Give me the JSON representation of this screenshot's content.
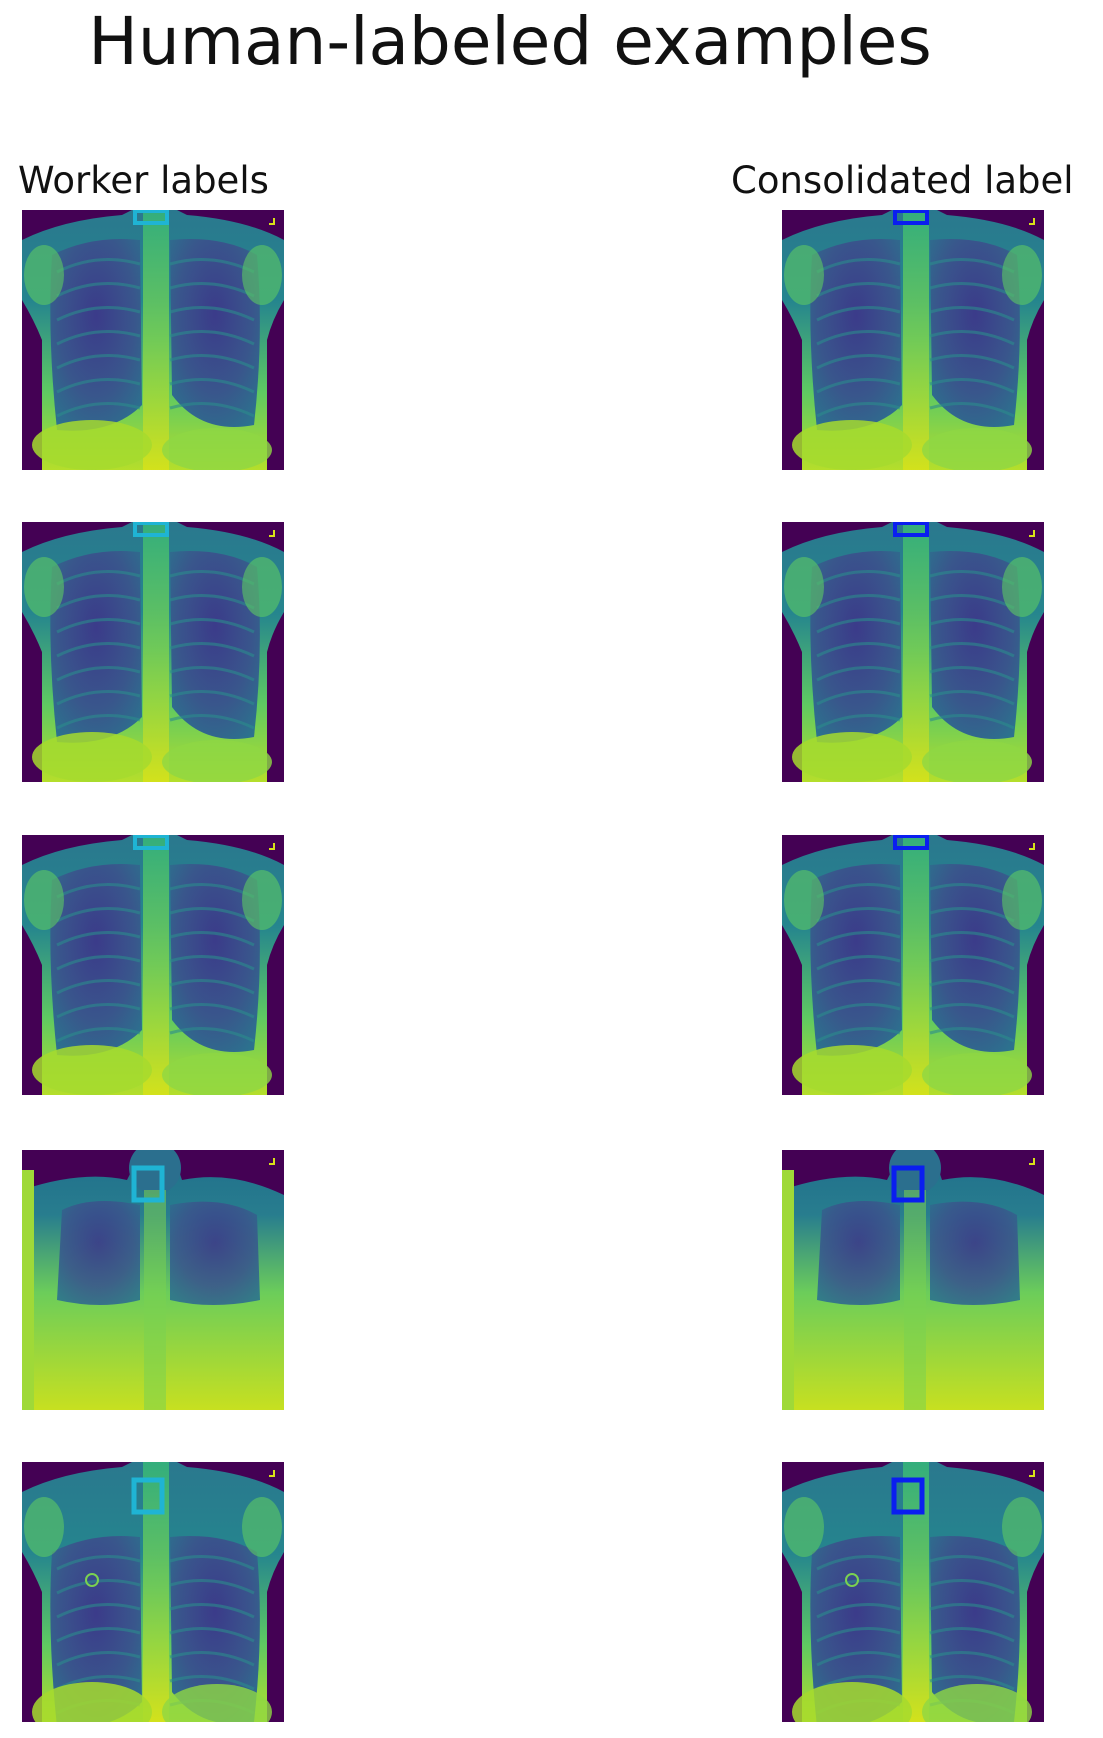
{
  "title": "Human-labeled examples",
  "columns": {
    "left": "Worker labels",
    "right": "Consolidated label"
  },
  "colors": {
    "background": "#440154",
    "worker_box": "#1fb4d4",
    "consolidated_box": "#0a1ef0"
  },
  "rows": [
    {
      "variant": "a",
      "box": "small"
    },
    {
      "variant": "a",
      "box": "small"
    },
    {
      "variant": "a",
      "box": "small"
    },
    {
      "variant": "b",
      "box": "square"
    },
    {
      "variant": "c",
      "box": "square"
    }
  ]
}
